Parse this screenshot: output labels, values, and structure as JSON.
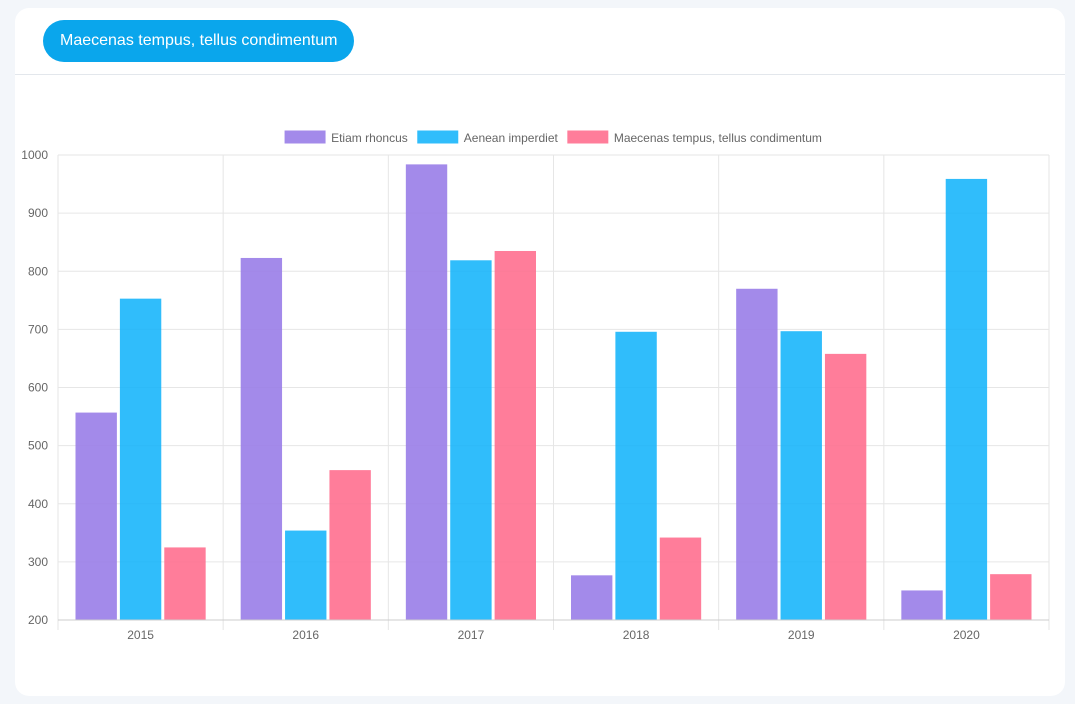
{
  "header": {
    "tab_label": "Maecenas tempus, tellus condimentum"
  },
  "colors": {
    "accent": "#0aa6ec",
    "series": [
      "#9a7ee8",
      "#1ab6fb",
      "#ff7090"
    ],
    "grid": "#e6e6e6",
    "tick_text": "#666666"
  },
  "chart_data": {
    "type": "bar",
    "categories": [
      "2015",
      "2016",
      "2017",
      "2018",
      "2019",
      "2020"
    ],
    "series": [
      {
        "name": "Etiam rhoncus",
        "values": [
          556,
          822,
          983,
          276,
          769,
          250
        ]
      },
      {
        "name": "Aenean imperdiet",
        "values": [
          752,
          353,
          818,
          695,
          696,
          958
        ]
      },
      {
        "name": "Maecenas tempus, tellus condimentum",
        "values": [
          324,
          457,
          834,
          341,
          657,
          278
        ]
      }
    ],
    "ylim": [
      200,
      1000
    ],
    "yticks": [
      "1000",
      "900",
      "800",
      "700",
      "600",
      "500",
      "400",
      "300",
      "200"
    ],
    "grid": true,
    "legend": "top"
  }
}
